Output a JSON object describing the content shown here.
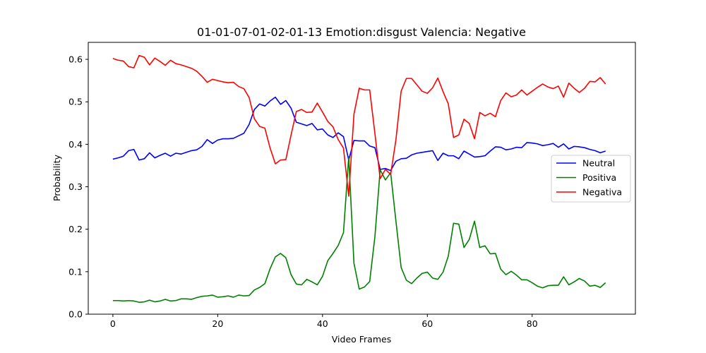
{
  "chart_data": {
    "type": "line",
    "title": "01-01-07-01-02-01-13 Emotion:disgust Valencia: Negative",
    "xlabel": "Video Frames",
    "ylabel": "Probability",
    "xlim": [
      -4.7,
      99.7
    ],
    "ylim": [
      0.0,
      0.64
    ],
    "xticks": [
      0,
      20,
      40,
      60,
      80
    ],
    "yticks": [
      0.0,
      0.1,
      0.2,
      0.3,
      0.4,
      0.5,
      0.6
    ],
    "xtick_labels": [
      "0",
      "20",
      "40",
      "60",
      "80"
    ],
    "ytick_labels": [
      "0.0",
      "0.1",
      "0.2",
      "0.3",
      "0.4",
      "0.5",
      "0.6"
    ],
    "grid": false,
    "legend_position": "center-right",
    "series": [
      {
        "name": "Neutral",
        "color": "#0000ff",
        "values": [
          0.365,
          0.368,
          0.372,
          0.385,
          0.388,
          0.363,
          0.366,
          0.38,
          0.368,
          0.374,
          0.379,
          0.372,
          0.379,
          0.377,
          0.381,
          0.385,
          0.387,
          0.395,
          0.411,
          0.402,
          0.41,
          0.413,
          0.413,
          0.414,
          0.42,
          0.426,
          0.447,
          0.482,
          0.495,
          0.49,
          0.502,
          0.511,
          0.494,
          0.503,
          0.485,
          0.452,
          0.448,
          0.444,
          0.449,
          0.434,
          0.436,
          0.422,
          0.416,
          0.427,
          0.418,
          0.363,
          0.409,
          0.408,
          0.408,
          0.396,
          0.392,
          0.341,
          0.343,
          0.338,
          0.36,
          0.366,
          0.367,
          0.375,
          0.379,
          0.381,
          0.383,
          0.385,
          0.362,
          0.379,
          0.373,
          0.373,
          0.366,
          0.384,
          0.377,
          0.37,
          0.371,
          0.373,
          0.384,
          0.394,
          0.393,
          0.387,
          0.389,
          0.393,
          0.392,
          0.404,
          0.403,
          0.401,
          0.397,
          0.399,
          0.402,
          0.393,
          0.401,
          0.389,
          0.395,
          0.394,
          0.392,
          0.388,
          0.385,
          0.38,
          0.384
        ]
      },
      {
        "name": "Positiva",
        "color": "#008000",
        "values": [
          0.032,
          0.032,
          0.031,
          0.032,
          0.031,
          0.028,
          0.029,
          0.033,
          0.029,
          0.031,
          0.035,
          0.031,
          0.032,
          0.036,
          0.036,
          0.035,
          0.039,
          0.042,
          0.043,
          0.045,
          0.04,
          0.041,
          0.043,
          0.04,
          0.045,
          0.043,
          0.044,
          0.057,
          0.063,
          0.072,
          0.107,
          0.135,
          0.143,
          0.133,
          0.093,
          0.071,
          0.069,
          0.082,
          0.076,
          0.069,
          0.089,
          0.126,
          0.143,
          0.162,
          0.192,
          0.37,
          0.12,
          0.059,
          0.064,
          0.077,
          0.183,
          0.34,
          0.316,
          0.333,
          0.22,
          0.11,
          0.08,
          0.072,
          0.085,
          0.096,
          0.099,
          0.085,
          0.082,
          0.099,
          0.137,
          0.214,
          0.212,
          0.157,
          0.176,
          0.219,
          0.157,
          0.161,
          0.142,
          0.143,
          0.106,
          0.093,
          0.101,
          0.092,
          0.081,
          0.081,
          0.074,
          0.066,
          0.062,
          0.067,
          0.068,
          0.068,
          0.088,
          0.069,
          0.076,
          0.084,
          0.078,
          0.066,
          0.068,
          0.063,
          0.074
        ]
      },
      {
        "name": "Negativa",
        "color": "#ff0000",
        "values": [
          0.602,
          0.598,
          0.596,
          0.583,
          0.58,
          0.609,
          0.605,
          0.587,
          0.603,
          0.595,
          0.586,
          0.598,
          0.59,
          0.587,
          0.583,
          0.579,
          0.572,
          0.56,
          0.546,
          0.553,
          0.55,
          0.547,
          0.545,
          0.546,
          0.536,
          0.531,
          0.51,
          0.46,
          0.442,
          0.438,
          0.391,
          0.354,
          0.363,
          0.364,
          0.422,
          0.477,
          0.482,
          0.475,
          0.476,
          0.497,
          0.476,
          0.454,
          0.441,
          0.411,
          0.391,
          0.278,
          0.471,
          0.532,
          0.528,
          0.528,
          0.425,
          0.319,
          0.341,
          0.329,
          0.41,
          0.525,
          0.555,
          0.555,
          0.54,
          0.525,
          0.52,
          0.533,
          0.556,
          0.524,
          0.495,
          0.416,
          0.422,
          0.459,
          0.449,
          0.413,
          0.475,
          0.467,
          0.473,
          0.465,
          0.503,
          0.521,
          0.512,
          0.516,
          0.528,
          0.516,
          0.525,
          0.534,
          0.542,
          0.535,
          0.531,
          0.537,
          0.511,
          0.544,
          0.532,
          0.522,
          0.532,
          0.548,
          0.547,
          0.557,
          0.542
        ]
      }
    ]
  }
}
